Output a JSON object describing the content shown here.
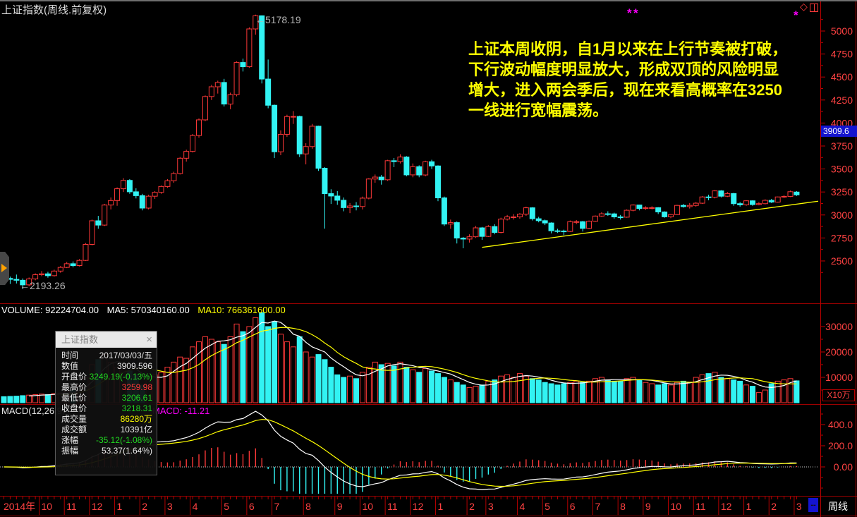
{
  "header": {
    "title": "上证指数(周线.前复权)"
  },
  "annotation": {
    "color": "#ffff00",
    "lines": [
      "上证本周收阴，自1月以来在上行节奏被打破，",
      "下行波动幅度明显放大，形成双顶的风险明显",
      "增大，进入两会季后，现在来看高概率在3250",
      "一线进行宽幅震荡。"
    ]
  },
  "labels": {
    "peak": "←5178.19",
    "low": "←2193.26"
  },
  "volume_header": {
    "volume": "VOLUME: 92224704.00",
    "ma5": "MA5: 570340160.00",
    "ma10": "MA10: 766361600.00"
  },
  "macd_header": {
    "left": "MACD(12,26,9)",
    "value": "MACD: -11.21"
  },
  "price_axis": {
    "badge": "3909.6"
  },
  "volume_axis": {
    "unit": "X10万"
  },
  "time_axis": {
    "crosshair_label": "--",
    "period": "周线"
  },
  "tooltip": {
    "title": "上证指数",
    "close_icon": "×",
    "rows": [
      {
        "label": "时间",
        "value": "2017/03/03/五",
        "color": "#e8e8e8"
      },
      {
        "label": "数值",
        "value": "3909.596",
        "color": "#e8e8e8"
      },
      {
        "label": "开盘价",
        "value": "3249.19(-0.13%)",
        "color": "#21d921"
      },
      {
        "label": "最高价",
        "value": "3259.98",
        "color": "#ff3a3a"
      },
      {
        "label": "最低价",
        "value": "3206.61",
        "color": "#21d921"
      },
      {
        "label": "收盘价",
        "value": "3218.31",
        "color": "#21d921"
      },
      {
        "label": "成交量",
        "value": "86280万",
        "color": "#ffff00"
      },
      {
        "label": "成交额",
        "value": "10391亿",
        "color": "#e8e8e8"
      },
      {
        "label": "涨幅",
        "value": "-35.12(-1.08%)",
        "color": "#21d921"
      },
      {
        "label": "振幅",
        "value": "53.37(1.64%)",
        "color": "#e8e8e8"
      }
    ]
  },
  "colors": {
    "up": "#fb3838",
    "down": "#32f3f3",
    "axis_text": "#ff4242",
    "ma5": "#ffffff",
    "ma10": "#ffff00",
    "dif": "#ffffff",
    "dea": "#ffff00",
    "trendline": "#ffff00",
    "zero_line": "#cfcfcf",
    "badge_bg": "#1414d0"
  },
  "chart_data": {
    "type": "candlestick",
    "symbol": "上证指数",
    "period": "周线",
    "adjust": "前复权",
    "price_ticks": [
      5000,
      4750,
      4500,
      4250,
      4000,
      3750,
      3500,
      3250,
      3000,
      2750,
      2500
    ],
    "volume_ticks": [
      30000,
      20000,
      10000
    ],
    "volume_unit": "X10万",
    "macd_ticks": [
      "400.0",
      "200.0",
      "0.00"
    ],
    "current_value": 3909.6,
    "peak_price": 5178.19,
    "start_low": 2193.26,
    "months": [
      [
        "2014年",
        6
      ],
      [
        "10",
        4
      ],
      [
        "11",
        4
      ],
      [
        "12",
        4
      ],
      [
        "1",
        4
      ],
      [
        "2",
        4
      ],
      [
        "3",
        4
      ],
      [
        "4",
        5
      ],
      [
        "5",
        4
      ],
      [
        "6",
        4
      ],
      [
        "7",
        5
      ],
      [
        "8",
        5
      ],
      [
        "9",
        4
      ],
      [
        "10",
        4
      ],
      [
        "11",
        4
      ],
      [
        "12",
        4
      ],
      [
        "1",
        5
      ],
      [
        "2",
        3
      ],
      [
        "3",
        5
      ],
      [
        "4",
        4
      ],
      [
        "5",
        4
      ],
      [
        "6",
        4
      ],
      [
        "7",
        4
      ],
      [
        "8",
        4
      ],
      [
        "9",
        4
      ],
      [
        "10",
        4
      ],
      [
        "11",
        4
      ],
      [
        "12",
        4
      ],
      [
        "1",
        4
      ],
      [
        "2",
        4
      ],
      [
        "3",
        1
      ]
    ],
    "trendline": {
      "from_week": 76,
      "price_from": 2648,
      "to_x_week": 130,
      "price_to": 3150
    },
    "weeks": [
      [
        2340,
        2380,
        2270,
        2310,
        2400
      ],
      [
        2310,
        2330,
        2250,
        2300,
        2500
      ],
      [
        2300,
        2352,
        2255,
        2290,
        2600
      ],
      [
        2290,
        2310,
        2193.26,
        2240,
        2800
      ],
      [
        2240,
        2320,
        2225,
        2305,
        3000
      ],
      [
        2305,
        2365,
        2290,
        2350,
        3200
      ],
      [
        2350,
        2390,
        2335,
        2360,
        3400
      ],
      [
        2360,
        2382,
        2318,
        2340,
        3200
      ],
      [
        2340,
        2405,
        2330,
        2390,
        3600
      ],
      [
        2390,
        2445,
        2372,
        2430,
        3800
      ],
      [
        2430,
        2490,
        2422,
        2470,
        4600
      ],
      [
        2470,
        2495,
        2430,
        2450,
        5000
      ],
      [
        2450,
        2520,
        2440,
        2506,
        6800
      ],
      [
        2506,
        2695,
        2500,
        2680,
        9800
      ],
      [
        2680,
        2950,
        2670,
        2937,
        15000
      ],
      [
        2937,
        2990,
        2850,
        2890,
        17000
      ],
      [
        2890,
        3120,
        2880,
        3108,
        19000
      ],
      [
        3108,
        3190,
        3060,
        3157,
        16000
      ],
      [
        3157,
        3300,
        3100,
        3285,
        14000
      ],
      [
        3285,
        3400,
        3250,
        3376,
        13000
      ],
      [
        3376,
        3390,
        3230,
        3252,
        12500
      ],
      [
        3252,
        3290,
        3180,
        3210,
        11000
      ],
      [
        3210,
        3230,
        3050,
        3075,
        7000
      ],
      [
        3075,
        3220,
        3060,
        3204,
        9000
      ],
      [
        3204,
        3260,
        3175,
        3246,
        11000
      ],
      [
        3246,
        3320,
        3230,
        3310,
        12000
      ],
      [
        3310,
        3390,
        3295,
        3372,
        14000
      ],
      [
        3372,
        3470,
        3350,
        3450,
        16000
      ],
      [
        3450,
        3630,
        3440,
        3617,
        18000
      ],
      [
        3617,
        3710,
        3580,
        3691,
        17500
      ],
      [
        3691,
        3880,
        3680,
        3864,
        22000
      ],
      [
        3864,
        4050,
        3840,
        4034,
        24000
      ],
      [
        4034,
        4300,
        4020,
        4288,
        26000
      ],
      [
        4288,
        4415,
        4250,
        4394,
        25000
      ],
      [
        4394,
        4460,
        4320,
        4441,
        24000
      ],
      [
        4441,
        4480,
        4180,
        4206,
        23000
      ],
      [
        4206,
        4330,
        4150,
        4308,
        26000
      ],
      [
        4308,
        4670,
        4290,
        4658,
        31000
      ],
      [
        4658,
        4700,
        4560,
        4612,
        28000
      ],
      [
        4612,
        5040,
        4600,
        5023,
        30000
      ],
      [
        5023,
        5178.19,
        4960,
        5166,
        33500
      ],
      [
        5166,
        5170,
        4430,
        4478,
        35500
      ],
      [
        4478,
        4690,
        4160,
        4193,
        30000
      ],
      [
        4193,
        4200,
        3620,
        3687,
        32000
      ],
      [
        3687,
        3920,
        3650,
        3877,
        27000
      ],
      [
        3877,
        4090,
        3850,
        4070,
        24000
      ],
      [
        4070,
        4130,
        3990,
        4071,
        22000
      ],
      [
        4071,
        4080,
        3630,
        3664,
        26000
      ],
      [
        3664,
        3780,
        3550,
        3744,
        20000
      ],
      [
        3744,
        3990,
        3720,
        3965,
        18000
      ],
      [
        3965,
        3970,
        3480,
        3508,
        19000
      ],
      [
        3508,
        3520,
        2851,
        3232,
        17000
      ],
      [
        3232,
        3280,
        3120,
        3206,
        14000
      ],
      [
        3206,
        3260,
        3110,
        3160,
        11000
      ],
      [
        3160,
        3190,
        3040,
        3080,
        10000
      ],
      [
        3080,
        3130,
        3020,
        3098,
        10500
      ],
      [
        3098,
        3140,
        3050,
        3092,
        9500
      ],
      [
        3092,
        3200,
        3060,
        3183,
        12000
      ],
      [
        3183,
        3400,
        3170,
        3391,
        14000
      ],
      [
        3391,
        3440,
        3350,
        3412,
        16000
      ],
      [
        3412,
        3435,
        3330,
        3383,
        15000
      ],
      [
        3383,
        3600,
        3370,
        3590,
        15500
      ],
      [
        3590,
        3620,
        3520,
        3580,
        14500
      ],
      [
        3580,
        3660,
        3560,
        3630,
        16000
      ],
      [
        3630,
        3640,
        3420,
        3436,
        14000
      ],
      [
        3436,
        3560,
        3410,
        3525,
        13000
      ],
      [
        3525,
        3540,
        3410,
        3435,
        12000
      ],
      [
        3435,
        3590,
        3420,
        3579,
        13500
      ],
      [
        3579,
        3600,
        3500,
        3533,
        12500
      ],
      [
        3533,
        3540,
        3150,
        3186,
        11500
      ],
      [
        3186,
        3200,
        2880,
        2901,
        10000
      ],
      [
        2901,
        2950,
        2850,
        2917,
        9000
      ],
      [
        2917,
        2930,
        2690,
        2749,
        8000
      ],
      [
        2749,
        2760,
        2638,
        2738,
        7000
      ],
      [
        2738,
        2790,
        2700,
        2763,
        6000
      ],
      [
        2763,
        2880,
        2750,
        2860,
        6500
      ],
      [
        2860,
        2870,
        2730,
        2767,
        7000
      ],
      [
        2767,
        2890,
        2760,
        2874,
        8500
      ],
      [
        2874,
        2900,
        2790,
        2810,
        9000
      ],
      [
        2810,
        2970,
        2800,
        2955,
        10500
      ],
      [
        2955,
        3000,
        2940,
        2979,
        11000
      ],
      [
        2979,
        3010,
        2950,
        2979,
        10000
      ],
      [
        2979,
        3020,
        2960,
        3009,
        11500
      ],
      [
        3009,
        3090,
        2990,
        3078,
        10500
      ],
      [
        3078,
        3085,
        2940,
        2959,
        9500
      ],
      [
        2959,
        2980,
        2920,
        2938,
        9000
      ],
      [
        2938,
        2950,
        2890,
        2913,
        8000
      ],
      [
        2913,
        2920,
        2800,
        2828,
        7500
      ],
      [
        2828,
        2850,
        2805,
        2825,
        7000
      ],
      [
        2825,
        2840,
        2780,
        2821,
        7500
      ],
      [
        2821,
        2940,
        2815,
        2927,
        8000
      ],
      [
        2927,
        2945,
        2900,
        2927,
        8500
      ],
      [
        2927,
        2935,
        2820,
        2854,
        8000
      ],
      [
        2854,
        2940,
        2845,
        2932,
        8500
      ],
      [
        2932,
        2995,
        2925,
        2988,
        9500
      ],
      [
        2988,
        3030,
        2980,
        3013,
        10000
      ],
      [
        3013,
        3040,
        2990,
        3012,
        9000
      ],
      [
        3012,
        3025,
        2960,
        2979,
        8500
      ],
      [
        2979,
        3000,
        2950,
        2976,
        8500
      ],
      [
        2976,
        3060,
        2970,
        3051,
        9500
      ],
      [
        3051,
        3115,
        3040,
        3108,
        10000
      ],
      [
        3108,
        3110,
        3050,
        3070,
        9000
      ],
      [
        3070,
        3095,
        3055,
        3078,
        8000
      ],
      [
        3078,
        3095,
        3060,
        3079,
        7500
      ],
      [
        3079,
        3085,
        3010,
        3033,
        7000
      ],
      [
        3033,
        3040,
        2970,
        2980,
        7500
      ],
      [
        2980,
        3010,
        2965,
        3004,
        7000
      ],
      [
        3004,
        3110,
        3000,
        3104,
        8000
      ],
      [
        3104,
        3120,
        3080,
        3091,
        8500
      ],
      [
        3091,
        3130,
        3070,
        3104,
        8000
      ],
      [
        3104,
        3140,
        3090,
        3128,
        10000
      ],
      [
        3128,
        3205,
        3120,
        3196,
        11000
      ],
      [
        3196,
        3220,
        3160,
        3193,
        11500
      ],
      [
        3193,
        3270,
        3180,
        3262,
        12000
      ],
      [
        3262,
        3270,
        3190,
        3204,
        10000
      ],
      [
        3204,
        3250,
        3195,
        3233,
        9500
      ],
      [
        3233,
        3240,
        3100,
        3123,
        9000
      ],
      [
        3123,
        3140,
        3090,
        3110,
        8500
      ],
      [
        3110,
        3160,
        3100,
        3154,
        7000
      ],
      [
        3154,
        3160,
        3100,
        3113,
        6500
      ],
      [
        3113,
        3140,
        3105,
        3123,
        4000
      ],
      [
        3123,
        3170,
        3115,
        3159,
        5000
      ],
      [
        3159,
        3175,
        3130,
        3140,
        7500
      ],
      [
        3140,
        3200,
        3135,
        3196,
        8500
      ],
      [
        3196,
        3215,
        3185,
        3202,
        9000
      ],
      [
        3202,
        3265,
        3195,
        3253,
        9500
      ],
      [
        3249.19,
        3259.98,
        3206.61,
        3218.31,
        8628
      ]
    ]
  }
}
